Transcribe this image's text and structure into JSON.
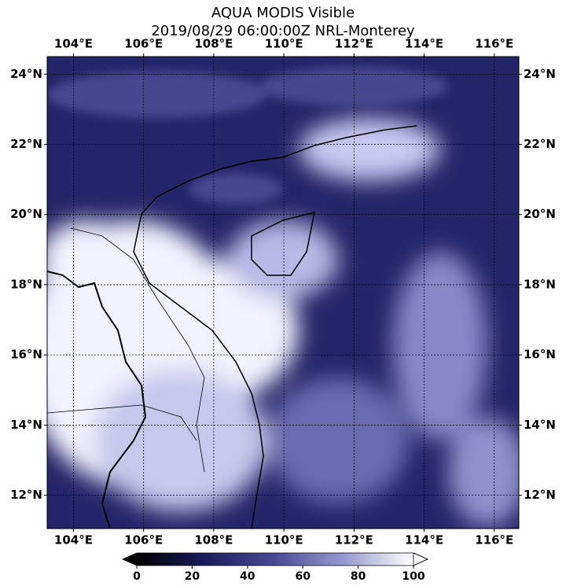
{
  "title": "AQUA MODIS Visible",
  "subtitle": "2019/08/29 06:00:00Z NRL-Monterey",
  "map": {
    "xlim": [
      103.25,
      116.7
    ],
    "ylim": [
      11.05,
      24.5
    ],
    "xticks": [
      {
        "value": 104,
        "label": "104°E"
      },
      {
        "value": 106,
        "label": "106°E"
      },
      {
        "value": 108,
        "label": "108°E"
      },
      {
        "value": 110,
        "label": "110°E"
      },
      {
        "value": 112,
        "label": "112°E"
      },
      {
        "value": 114,
        "label": "114°E"
      },
      {
        "value": 116,
        "label": "116°E"
      }
    ],
    "yticks": [
      {
        "value": 12,
        "label": "12°N"
      },
      {
        "value": 14,
        "label": "14°N"
      },
      {
        "value": 16,
        "label": "16°N"
      },
      {
        "value": 18,
        "label": "18°N"
      },
      {
        "value": 20,
        "label": "20°N"
      },
      {
        "value": 22,
        "label": "22°N"
      },
      {
        "value": 24,
        "label": "24°N"
      }
    ]
  },
  "colorbar": {
    "lim": [
      0,
      100
    ],
    "ticks": [
      0,
      20,
      40,
      60,
      80,
      100
    ]
  }
}
